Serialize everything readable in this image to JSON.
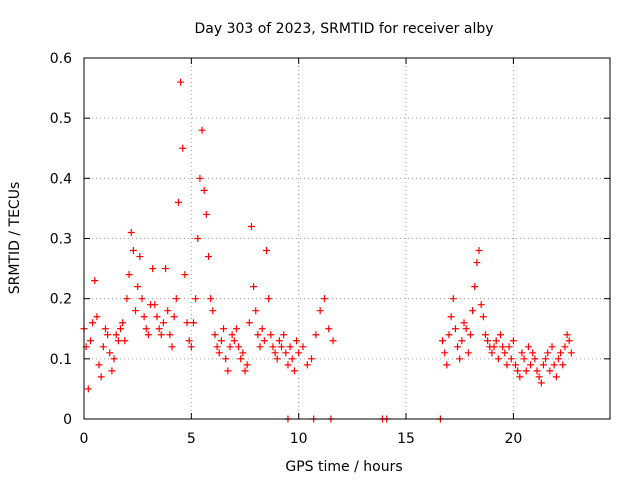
{
  "chart_data": {
    "type": "scatter",
    "title": "Day 303 of 2023, SRMTID for receiver alby",
    "xlabel": "GPS time / hours",
    "ylabel": "SRMTID / TECUs",
    "xlim": [
      0,
      24.5
    ],
    "ylim": [
      0,
      0.6
    ],
    "xticks": [
      0,
      5,
      10,
      15,
      20
    ],
    "yticks": [
      0,
      0.1,
      0.2,
      0.3,
      0.4,
      0.5,
      0.6
    ],
    "xtick_labels": [
      "0",
      "5",
      "10",
      "15",
      "20"
    ],
    "ytick_labels": [
      "0",
      "0.1",
      "0.2",
      "0.3",
      "0.4",
      "0.5",
      "0.6"
    ],
    "grid": true,
    "marker": "+",
    "color": "#ff0000",
    "series": [
      {
        "name": "SRMTID",
        "x": [
          0.0,
          0.1,
          0.2,
          0.3,
          0.4,
          0.5,
          0.6,
          0.7,
          0.8,
          0.9,
          1.0,
          1.1,
          1.2,
          1.3,
          1.4,
          1.5,
          1.6,
          1.7,
          1.8,
          1.9,
          2.0,
          2.1,
          2.2,
          2.3,
          2.4,
          2.5,
          2.6,
          2.7,
          2.8,
          2.9,
          3.0,
          3.1,
          3.2,
          3.3,
          3.4,
          3.5,
          3.6,
          3.7,
          3.8,
          3.9,
          4.0,
          4.1,
          4.2,
          4.3,
          4.4,
          4.5,
          4.6,
          4.7,
          4.8,
          4.9,
          5.0,
          5.1,
          5.2,
          5.3,
          5.4,
          5.5,
          5.6,
          5.7,
          5.8,
          5.9,
          6.0,
          6.1,
          6.2,
          6.3,
          6.4,
          6.5,
          6.6,
          6.7,
          6.8,
          6.9,
          7.0,
          7.1,
          7.2,
          7.3,
          7.4,
          7.5,
          7.6,
          7.7,
          7.8,
          7.9,
          8.0,
          8.1,
          8.2,
          8.3,
          8.4,
          8.5,
          8.6,
          8.7,
          8.8,
          8.9,
          9.0,
          9.1,
          9.2,
          9.3,
          9.4,
          9.5,
          9.6,
          9.7,
          9.8,
          9.9,
          10.0,
          10.2,
          10.4,
          10.6,
          10.8,
          11.0,
          11.2,
          11.4,
          11.6,
          9.5,
          10.7,
          11.5,
          13.9,
          14.1,
          16.6,
          16.7,
          16.8,
          16.9,
          17.0,
          17.1,
          17.2,
          17.3,
          17.4,
          17.5,
          17.6,
          17.7,
          17.8,
          17.9,
          18.0,
          18.1,
          18.2,
          18.3,
          18.4,
          18.5,
          18.6,
          18.7,
          18.8,
          18.9,
          19.0,
          19.1,
          19.2,
          19.3,
          19.4,
          19.5,
          19.6,
          19.7,
          19.8,
          19.9,
          20.0,
          20.1,
          20.2,
          20.3,
          20.4,
          20.5,
          20.6,
          20.7,
          20.8,
          20.9,
          21.0,
          21.1,
          21.2,
          21.3,
          21.4,
          21.5,
          21.6,
          21.7,
          21.8,
          21.9,
          22.0,
          22.1,
          22.2,
          22.3,
          22.4,
          22.5,
          22.6,
          22.7
        ],
        "y": [
          0.15,
          0.12,
          0.05,
          0.13,
          0.16,
          0.23,
          0.17,
          0.09,
          0.07,
          0.12,
          0.15,
          0.14,
          0.11,
          0.08,
          0.1,
          0.14,
          0.13,
          0.15,
          0.16,
          0.13,
          0.2,
          0.24,
          0.31,
          0.28,
          0.18,
          0.22,
          0.27,
          0.2,
          0.17,
          0.15,
          0.14,
          0.19,
          0.25,
          0.19,
          0.17,
          0.15,
          0.14,
          0.16,
          0.25,
          0.18,
          0.14,
          0.12,
          0.17,
          0.2,
          0.36,
          0.56,
          0.45,
          0.24,
          0.16,
          0.13,
          0.12,
          0.16,
          0.2,
          0.3,
          0.4,
          0.48,
          0.38,
          0.34,
          0.27,
          0.2,
          0.18,
          0.14,
          0.12,
          0.11,
          0.13,
          0.15,
          0.1,
          0.08,
          0.12,
          0.14,
          0.13,
          0.15,
          0.12,
          0.1,
          0.11,
          0.08,
          0.09,
          0.16,
          0.32,
          0.22,
          0.18,
          0.14,
          0.12,
          0.15,
          0.13,
          0.28,
          0.2,
          0.14,
          0.12,
          0.11,
          0.1,
          0.13,
          0.12,
          0.14,
          0.11,
          0.09,
          0.12,
          0.1,
          0.08,
          0.13,
          0.11,
          0.12,
          0.09,
          0.1,
          0.14,
          0.18,
          0.2,
          0.15,
          0.13,
          0.0,
          0.0,
          0.0,
          0.0,
          0.0,
          0.0,
          0.13,
          0.11,
          0.09,
          0.14,
          0.17,
          0.2,
          0.15,
          0.12,
          0.1,
          0.13,
          0.16,
          0.15,
          0.11,
          0.14,
          0.18,
          0.22,
          0.26,
          0.28,
          0.19,
          0.17,
          0.14,
          0.13,
          0.12,
          0.11,
          0.12,
          0.13,
          0.1,
          0.14,
          0.12,
          0.11,
          0.09,
          0.12,
          0.1,
          0.13,
          0.09,
          0.08,
          0.07,
          0.11,
          0.1,
          0.08,
          0.12,
          0.09,
          0.11,
          0.1,
          0.08,
          0.07,
          0.06,
          0.09,
          0.1,
          0.11,
          0.08,
          0.12,
          0.09,
          0.07,
          0.1,
          0.11,
          0.09,
          0.12,
          0.14,
          0.13,
          0.11
        ]
      }
    ]
  }
}
